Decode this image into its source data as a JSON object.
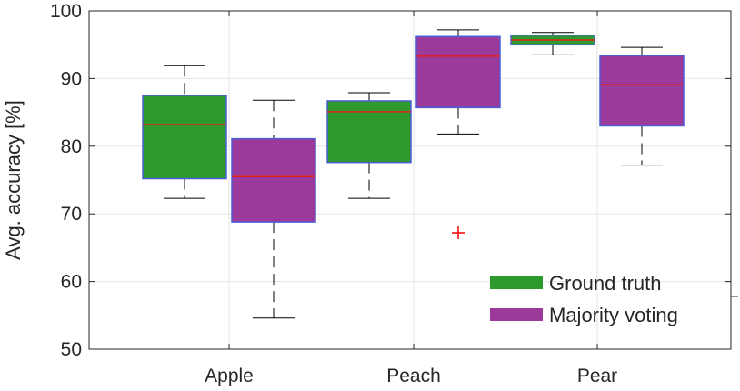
{
  "chart_data": {
    "type": "box",
    "title": "",
    "xlabel": "",
    "ylabel": "Avg. accuracy [%]",
    "ylim": [
      50,
      100
    ],
    "yticks": [
      50,
      60,
      70,
      80,
      90,
      100
    ],
    "grid": true,
    "legend_position": "bottom-right",
    "categories": [
      "Apple",
      "Peach",
      "Pear"
    ],
    "series": [
      {
        "name": "Ground truth",
        "color": "#2e9a2e",
        "boxes": [
          {
            "category": "Apple",
            "whisker_low": 72.3,
            "q1": 75.2,
            "median": 83.2,
            "q3": 87.5,
            "whisker_high": 91.9,
            "outliers": []
          },
          {
            "category": "Peach",
            "whisker_low": 72.3,
            "q1": 77.6,
            "median": 85.1,
            "q3": 86.7,
            "whisker_high": 87.9,
            "outliers": []
          },
          {
            "category": "Pear",
            "whisker_low": 93.5,
            "q1": 95.0,
            "median": 95.7,
            "q3": 96.4,
            "whisker_high": 96.8,
            "outliers": []
          }
        ]
      },
      {
        "name": "Majority voting",
        "color": "#9b3a9b",
        "boxes": [
          {
            "category": "Apple",
            "whisker_low": 54.6,
            "q1": 68.8,
            "median": 75.5,
            "q3": 81.1,
            "whisker_high": 86.8,
            "outliers": []
          },
          {
            "category": "Peach",
            "whisker_low": 81.8,
            "q1": 85.7,
            "median": 93.3,
            "q3": 96.2,
            "whisker_high": 97.2,
            "outliers": [
              67.2
            ]
          },
          {
            "category": "Pear",
            "whisker_low": 77.2,
            "q1": 83.0,
            "median": 89.1,
            "q3": 93.4,
            "whisker_high": 94.6,
            "outliers": []
          }
        ]
      }
    ],
    "style": {
      "box_edge_color": "#4a5fd6",
      "median_color": "#e0201b",
      "outlier_color": "#ff0000"
    }
  }
}
